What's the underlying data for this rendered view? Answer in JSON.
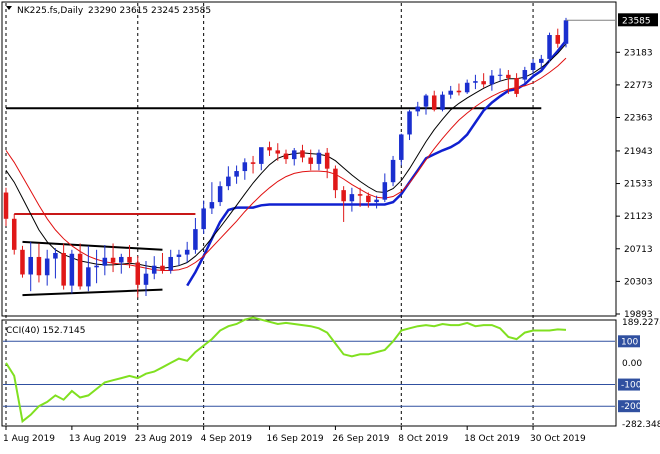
{
  "header": {
    "symbol": "NK225.fs,Daily",
    "ohlc": "23290 23615 23245 23585"
  },
  "cci_header": {
    "label": "CCI(40) 152.7145"
  },
  "colors": {
    "bull_candle": "#1a2fcf",
    "bear_candle": "#e01818",
    "upper_band": "#1020d0",
    "ma_fast": "#000000",
    "ma_slow": "#e01010",
    "trendline_red": "#c81818",
    "trendline_black": "#000000",
    "cci_line": "#80e020",
    "cci_levels": "#3050a0",
    "grid_dashes": "#000000",
    "label_box": "#000000",
    "cci_label_box": "#3050a0"
  },
  "chart_data": [
    {
      "type": "candlestick",
      "title": "",
      "symbol": "NK225.fs",
      "timeframe": "Daily",
      "x": [
        "2019-08-01",
        "2019-08-02",
        "2019-08-05",
        "2019-08-06",
        "2019-08-07",
        "2019-08-08",
        "2019-08-09",
        "2019-08-12",
        "2019-08-13",
        "2019-08-14",
        "2019-08-15",
        "2019-08-16",
        "2019-08-19",
        "2019-08-20",
        "2019-08-21",
        "2019-08-22",
        "2019-08-23",
        "2019-08-26",
        "2019-08-27",
        "2019-08-28",
        "2019-08-29",
        "2019-08-30",
        "2019-09-02",
        "2019-09-03",
        "2019-09-04",
        "2019-09-05",
        "2019-09-06",
        "2019-09-09",
        "2019-09-10",
        "2019-09-11",
        "2019-09-12",
        "2019-09-13",
        "2019-09-16",
        "2019-09-17",
        "2019-09-18",
        "2019-09-19",
        "2019-09-20",
        "2019-09-23",
        "2019-09-24",
        "2019-09-25",
        "2019-09-26",
        "2019-09-27",
        "2019-09-30",
        "2019-10-01",
        "2019-10-02",
        "2019-10-03",
        "2019-10-04",
        "2019-10-07",
        "2019-10-08",
        "2019-10-09",
        "2019-10-10",
        "2019-10-11",
        "2019-10-14",
        "2019-10-15",
        "2019-10-16",
        "2019-10-17",
        "2019-10-18",
        "2019-10-21",
        "2019-10-22",
        "2019-10-23",
        "2019-10-24",
        "2019-10-25",
        "2019-10-28",
        "2019-10-29",
        "2019-10-30",
        "2019-10-31",
        "2019-11-01",
        "2019-11-04",
        "2019-11-05"
      ],
      "open": [
        21420,
        21090,
        20700,
        20390,
        20610,
        20380,
        20590,
        20660,
        20250,
        20650,
        20240,
        20480,
        20500,
        20600,
        20540,
        20610,
        20540,
        20260,
        20400,
        20500,
        20440,
        20610,
        20640,
        20700,
        20960,
        21220,
        21300,
        21500,
        21620,
        21690,
        21800,
        21780,
        21990,
        21950,
        21910,
        21840,
        21950,
        21860,
        21780,
        21920,
        21720,
        21450,
        21310,
        21400,
        21380,
        21300,
        21330,
        21550,
        21830,
        22150,
        22440,
        22500,
        22640,
        22460,
        22650,
        22700,
        22680,
        22800,
        22820,
        22780,
        22890,
        22900,
        22860,
        22840,
        22960,
        23050,
        23100,
        23400,
        23290
      ],
      "high": [
        21480,
        21150,
        20750,
        20800,
        20780,
        20700,
        20720,
        20780,
        20700,
        20780,
        20750,
        20700,
        20760,
        20780,
        20650,
        20760,
        20620,
        20560,
        20620,
        20660,
        20700,
        20700,
        20800,
        21100,
        21320,
        21550,
        21560,
        21750,
        21760,
        21850,
        21880,
        21980,
        22060,
        22040,
        21960,
        21980,
        22020,
        21960,
        21960,
        21980,
        21760,
        21500,
        21480,
        21480,
        21420,
        21380,
        21660,
        21880,
        22160,
        22460,
        22560,
        22660,
        22700,
        22690,
        22760,
        22790,
        22840,
        22900,
        22920,
        22960,
        22980,
        22960,
        22920,
        23000,
        23100,
        23150,
        23430,
        23480,
        23615
      ],
      "high_note": "",
      "low": [
        21000,
        20640,
        20350,
        20180,
        20290,
        20250,
        20340,
        20200,
        20150,
        20200,
        20180,
        20280,
        20380,
        20420,
        20400,
        20470,
        20100,
        20120,
        20330,
        20400,
        20400,
        20500,
        20540,
        20650,
        20900,
        21150,
        21250,
        21450,
        21530,
        21580,
        21660,
        21700,
        21880,
        21820,
        21780,
        21760,
        21800,
        21700,
        21700,
        21600,
        21350,
        21050,
        21180,
        21240,
        21230,
        21220,
        21300,
        21500,
        21760,
        22080,
        22380,
        22400,
        22440,
        22440,
        22600,
        22640,
        22660,
        22720,
        22740,
        22700,
        22820,
        22660,
        22620,
        22780,
        22900,
        22960,
        23060,
        23240,
        23245
      ],
      "close": [
        21090,
        20700,
        20390,
        20610,
        20380,
        20590,
        20660,
        20250,
        20650,
        20240,
        20480,
        20500,
        20600,
        20540,
        20610,
        20540,
        20260,
        20400,
        20500,
        20440,
        20610,
        20640,
        20700,
        20960,
        21220,
        21300,
        21500,
        21620,
        21690,
        21800,
        21780,
        21990,
        21950,
        21910,
        21840,
        21950,
        21860,
        21780,
        21920,
        21720,
        21450,
        21310,
        21400,
        21380,
        21300,
        21330,
        21550,
        21830,
        22150,
        22440,
        22500,
        22640,
        22460,
        22650,
        22700,
        22680,
        22800,
        22820,
        22780,
        22890,
        22900,
        22860,
        22660,
        22960,
        23050,
        23100,
        23400,
        23290,
        23585
      ],
      "ma_fast": [
        21700,
        21550,
        21350,
        21150,
        20950,
        20800,
        20700,
        20640,
        20600,
        20560,
        20540,
        20520,
        20510,
        20510,
        20520,
        20530,
        20520,
        20500,
        20480,
        20470,
        20480,
        20500,
        20540,
        20620,
        20720,
        20850,
        20980,
        21120,
        21260,
        21400,
        21540,
        21660,
        21770,
        21850,
        21890,
        21910,
        21920,
        21910,
        21900,
        21880,
        21820,
        21730,
        21640,
        21560,
        21490,
        21430,
        21420,
        21470,
        21570,
        21720,
        21890,
        22060,
        22210,
        22340,
        22460,
        22540,
        22610,
        22670,
        22730,
        22780,
        22820,
        22850,
        22850,
        22870,
        22920,
        22990,
        23070,
        23170,
        23290
      ],
      "ma_slow": [
        21950,
        21800,
        21620,
        21440,
        21260,
        21090,
        20950,
        20840,
        20750,
        20680,
        20620,
        20580,
        20550,
        20530,
        20520,
        20510,
        20490,
        20470,
        20450,
        20440,
        20440,
        20450,
        20480,
        20540,
        20620,
        20730,
        20840,
        20950,
        21060,
        21180,
        21290,
        21390,
        21480,
        21560,
        21620,
        21660,
        21680,
        21690,
        21690,
        21680,
        21650,
        21590,
        21520,
        21460,
        21400,
        21360,
        21350,
        21370,
        21430,
        21540,
        21680,
        21830,
        21970,
        22100,
        22220,
        22330,
        22420,
        22500,
        22570,
        22630,
        22680,
        22720,
        22740,
        22760,
        22800,
        22860,
        22930,
        23010,
        23110
      ],
      "upper_band": [
        null,
        null,
        null,
        null,
        null,
        null,
        null,
        null,
        null,
        null,
        null,
        null,
        null,
        null,
        null,
        null,
        null,
        null,
        null,
        null,
        null,
        null,
        20250,
        20420,
        20620,
        20840,
        21050,
        21200,
        21230,
        21230,
        21230,
        21260,
        21270,
        21270,
        21270,
        21270,
        21270,
        21270,
        21270,
        21270,
        21270,
        21270,
        21270,
        21270,
        21270,
        21270,
        21270,
        21300,
        21400,
        21550,
        21700,
        21850,
        21900,
        21950,
        21990,
        22050,
        22150,
        22300,
        22450,
        22550,
        22630,
        22700,
        22720,
        22780,
        22880,
        22950,
        23080,
        23200,
        23330
      ],
      "trendlines": [
        {
          "color": "trendline_red",
          "from": [
            "2019-08-02",
            21150
          ],
          "to": [
            "2019-09-03",
            21150
          ]
        },
        {
          "color": "trendline_black",
          "from": [
            "2019-08-05",
            20800
          ],
          "to": [
            "2019-08-28",
            20700
          ]
        },
        {
          "color": "trendline_black",
          "from": [
            "2019-08-05",
            20130
          ],
          "to": [
            "2019-08-28",
            20200
          ]
        },
        {
          "color": "trendline_black",
          "from": [
            "2019-08-01",
            22480
          ],
          "to": [
            "2019-10-31",
            22480
          ]
        }
      ],
      "ylim": [
        19893,
        23790
      ],
      "y_ticks": [
        "23183",
        "22773",
        "22363",
        "21943",
        "21533",
        "21123",
        "20713",
        "20303",
        "19893"
      ],
      "current_price_label": "23585",
      "x_tick_labels": [
        "1 Aug 2019",
        "13 Aug 2019",
        "23 Aug 2019",
        "4 Sep 2019",
        "16 Sep 2019",
        "26 Sep 2019",
        "8 Oct 2019",
        "18 Oct 2019",
        "30 Oct 2019"
      ],
      "x_tick_dates": [
        "2019-08-01",
        "2019-08-13",
        "2019-08-23",
        "2019-09-04",
        "2019-09-16",
        "2019-09-26",
        "2019-10-08",
        "2019-10-18",
        "2019-10-30"
      ],
      "vertical_dashed_dates": [
        "2019-08-01",
        "2019-08-23",
        "2019-09-04",
        "2019-10-08",
        "2019-10-30"
      ],
      "grid": false
    },
    {
      "type": "line",
      "title": "CCI(40) 152.7145",
      "series": [
        {
          "values": [
            0,
            -60,
            -270,
            -240,
            -200,
            -180,
            -150,
            -170,
            -130,
            -160,
            -150,
            -120,
            -90,
            -80,
            -70,
            -60,
            -70,
            -50,
            -40,
            -20,
            0,
            20,
            10,
            50,
            80,
            110,
            150,
            170,
            180,
            200,
            210,
            200,
            190,
            180,
            185,
            180,
            175,
            170,
            160,
            140,
            90,
            40,
            30,
            40,
            40,
            50,
            60,
            100,
            150,
            160,
            170,
            175,
            170,
            180,
            175,
            175,
            185,
            170,
            175,
            175,
            160,
            120,
            110,
            140,
            150,
            150,
            150,
            155,
            152.7145
          ]
        }
      ],
      "ylim": [
        -282.348,
        189.2278
      ],
      "y_ticks": [
        "189.2278",
        "100",
        "0.00",
        "-100",
        "-200",
        "-282.348"
      ],
      "levels": [
        100,
        -100,
        -200
      ]
    }
  ]
}
